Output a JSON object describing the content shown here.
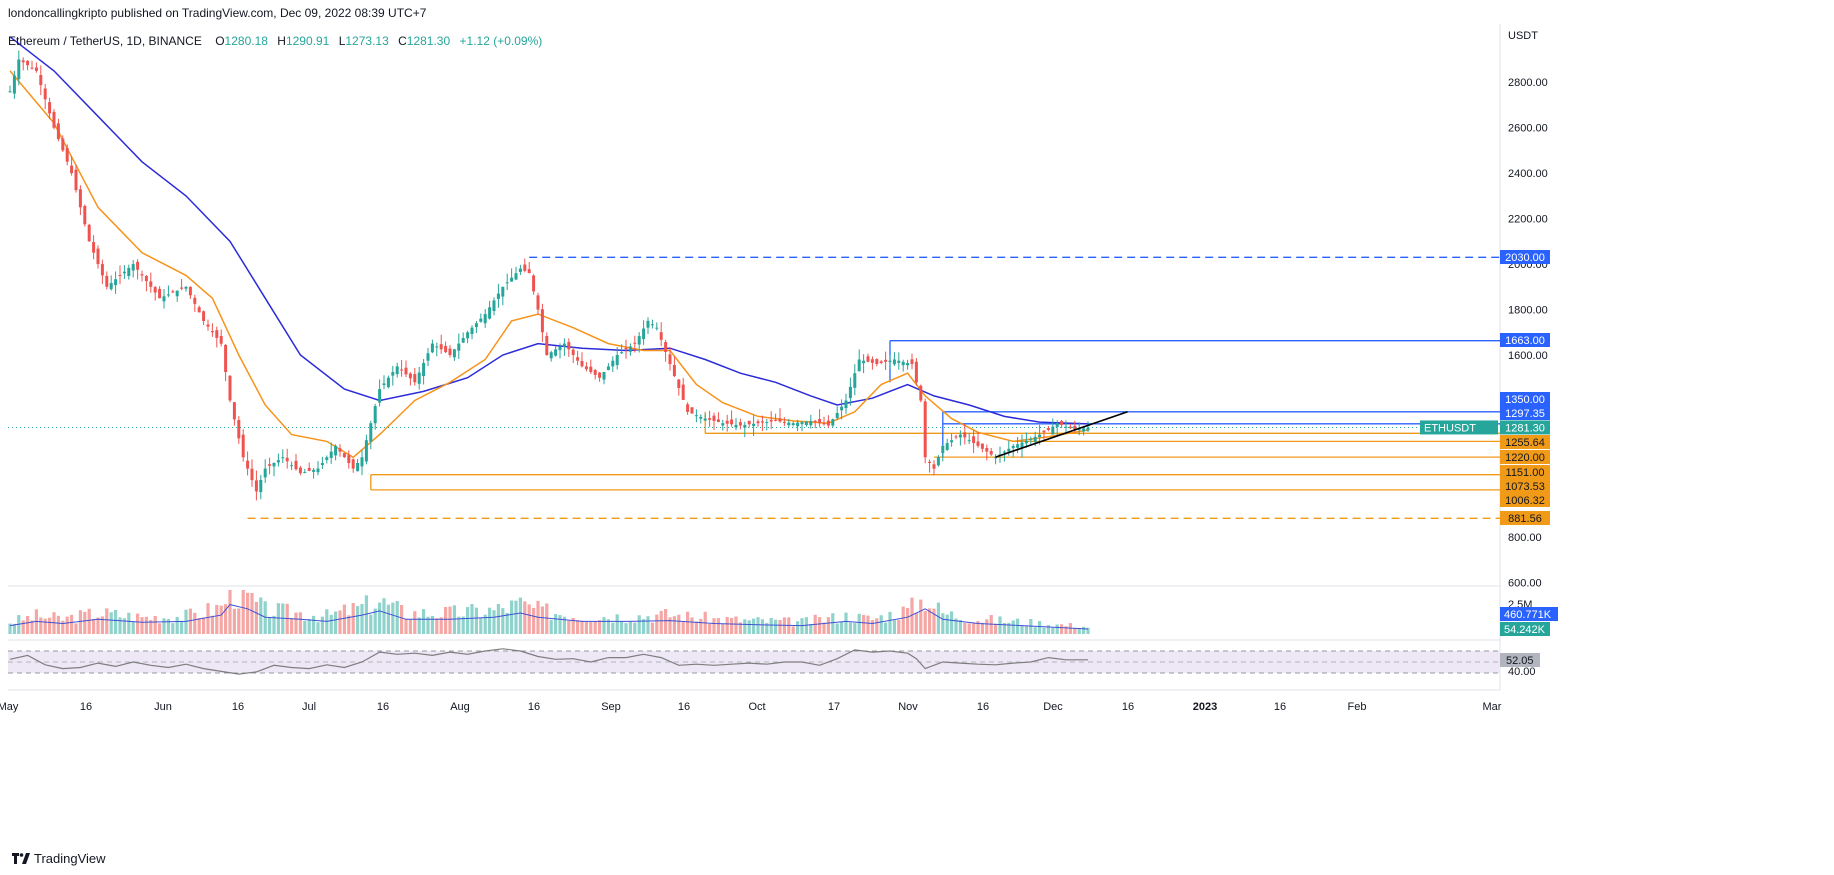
{
  "header": {
    "published": "londoncallingkripto published on TradingView.com, Dec 09, 2022 08:39 UTC+7"
  },
  "legend": {
    "symbol": "Ethereum / TetherUS, 1D, BINANCE",
    "o_label": "O",
    "o": "1280.18",
    "h_label": "H",
    "h": "1290.91",
    "l_label": "L",
    "l": "1273.13",
    "c_label": "C",
    "c": "1281.30",
    "change": "+1.12 (+0.09%)"
  },
  "footer": {
    "brand": "TradingView"
  },
  "colors": {
    "up": "#26a69a",
    "down": "#ef5350",
    "ema_fast": "#f7931a",
    "ema_slow": "#2b2bd9",
    "level_blue": "#2962ff",
    "level_orange": "#f09a18",
    "trend": "#000000",
    "rsi": "#7e7e7e",
    "rsi_band": "#ede7f6"
  },
  "chart_data": {
    "type": "candlestick",
    "unit": "USDT",
    "symbol": "ETHUSDT",
    "last_price": "1281.30",
    "yticks": [
      "2800.00",
      "2600.00",
      "2400.00",
      "2200.00",
      "2000.00",
      "1800.00",
      "1600.00",
      "800.00",
      "600.00"
    ],
    "xticks": [
      "May",
      "16",
      "Jun",
      "16",
      "Jul",
      "16",
      "Aug",
      "16",
      "Sep",
      "16",
      "Oct",
      "17",
      "Nov",
      "16",
      "Dec",
      "16",
      "2023",
      "16",
      "Feb",
      "Mar"
    ],
    "price_path": [
      [
        0,
        2760
      ],
      [
        2,
        2900
      ],
      [
        6,
        2850
      ],
      [
        10,
        2600
      ],
      [
        14,
        2400
      ],
      [
        18,
        2100
      ],
      [
        22,
        1900
      ],
      [
        28,
        2000
      ],
      [
        34,
        1850
      ],
      [
        40,
        1900
      ],
      [
        44,
        1750
      ],
      [
        48,
        1650
      ],
      [
        50,
        1400
      ],
      [
        53,
        1150
      ],
      [
        56,
        1000
      ],
      [
        58,
        1100
      ],
      [
        62,
        1150
      ],
      [
        66,
        1080
      ],
      [
        70,
        1100
      ],
      [
        74,
        1200
      ],
      [
        78,
        1100
      ],
      [
        80,
        1150
      ],
      [
        84,
        1450
      ],
      [
        88,
        1550
      ],
      [
        92,
        1480
      ],
      [
        96,
        1650
      ],
      [
        100,
        1600
      ],
      [
        104,
        1700
      ],
      [
        108,
        1780
      ],
      [
        112,
        1900
      ],
      [
        116,
        1980
      ],
      [
        118,
        1960
      ],
      [
        120,
        1800
      ],
      [
        122,
        1600
      ],
      [
        126,
        1650
      ],
      [
        130,
        1550
      ],
      [
        134,
        1500
      ],
      [
        138,
        1600
      ],
      [
        142,
        1650
      ],
      [
        145,
        1750
      ],
      [
        147,
        1720
      ],
      [
        150,
        1560
      ],
      [
        154,
        1350
      ],
      [
        158,
        1320
      ],
      [
        162,
        1300
      ],
      [
        166,
        1290
      ],
      [
        170,
        1300
      ],
      [
        174,
        1310
      ],
      [
        178,
        1300
      ],
      [
        182,
        1310
      ],
      [
        186,
        1290
      ],
      [
        190,
        1400
      ],
      [
        193,
        1580
      ],
      [
        197,
        1560
      ],
      [
        201,
        1580
      ],
      [
        205,
        1560
      ],
      [
        207,
        1400
      ],
      [
        208,
        1150
      ],
      [
        210,
        1100
      ],
      [
        212,
        1200
      ],
      [
        216,
        1250
      ],
      [
        220,
        1200
      ],
      [
        224,
        1150
      ],
      [
        228,
        1200
      ],
      [
        232,
        1230
      ],
      [
        236,
        1270
      ],
      [
        238,
        1300
      ],
      [
        242,
        1270
      ],
      [
        245,
        1281
      ]
    ],
    "x_start": "2022-05-01",
    "x_day_step": 1,
    "ema_fast_path": [
      [
        0,
        2850
      ],
      [
        10,
        2620
      ],
      [
        20,
        2250
      ],
      [
        30,
        2050
      ],
      [
        40,
        1950
      ],
      [
        46,
        1850
      ],
      [
        52,
        1600
      ],
      [
        58,
        1380
      ],
      [
        64,
        1250
      ],
      [
        72,
        1220
      ],
      [
        78,
        1150
      ],
      [
        84,
        1250
      ],
      [
        92,
        1400
      ],
      [
        100,
        1480
      ],
      [
        108,
        1580
      ],
      [
        114,
        1750
      ],
      [
        120,
        1780
      ],
      [
        128,
        1720
      ],
      [
        136,
        1650
      ],
      [
        144,
        1620
      ],
      [
        150,
        1620
      ],
      [
        156,
        1470
      ],
      [
        162,
        1390
      ],
      [
        170,
        1330
      ],
      [
        178,
        1310
      ],
      [
        186,
        1300
      ],
      [
        192,
        1350
      ],
      [
        198,
        1470
      ],
      [
        204,
        1520
      ],
      [
        208,
        1420
      ],
      [
        214,
        1320
      ],
      [
        220,
        1260
      ],
      [
        228,
        1220
      ],
      [
        236,
        1240
      ],
      [
        245,
        1270
      ]
    ],
    "ema_slow_path": [
      [
        0,
        3000
      ],
      [
        10,
        2850
      ],
      [
        20,
        2650
      ],
      [
        30,
        2450
      ],
      [
        40,
        2300
      ],
      [
        50,
        2100
      ],
      [
        58,
        1850
      ],
      [
        66,
        1600
      ],
      [
        76,
        1450
      ],
      [
        84,
        1400
      ],
      [
        94,
        1440
      ],
      [
        104,
        1500
      ],
      [
        112,
        1600
      ],
      [
        120,
        1650
      ],
      [
        130,
        1630
      ],
      [
        140,
        1620
      ],
      [
        150,
        1630
      ],
      [
        158,
        1580
      ],
      [
        166,
        1520
      ],
      [
        174,
        1480
      ],
      [
        182,
        1420
      ],
      [
        188,
        1380
      ],
      [
        196,
        1410
      ],
      [
        204,
        1470
      ],
      [
        210,
        1420
      ],
      [
        218,
        1380
      ],
      [
        226,
        1330
      ],
      [
        234,
        1305
      ],
      [
        245,
        1297
      ]
    ],
    "levels": [
      {
        "label": "2030.00",
        "value": 2030,
        "from_day": 118,
        "color": "blue",
        "style": "dashed"
      },
      {
        "label": "1663.00",
        "value": 1663,
        "from_day": 200,
        "color": "blue",
        "style": "solid"
      },
      {
        "label": "1350.00",
        "value": 1350,
        "from_day": 212,
        "color": "blue",
        "style": "solid"
      },
      {
        "label": "1297.35",
        "value": 1297.35,
        "from_day": 212,
        "color": "blue",
        "style": "solid"
      },
      {
        "label": "1255.64",
        "value": 1255.64,
        "from_day": 158,
        "color": "orange",
        "style": "solid"
      },
      {
        "label": "1220.00",
        "value": 1220,
        "from_day": 228,
        "color": "orange",
        "style": "solid"
      },
      {
        "label": "1151.00",
        "value": 1151,
        "from_day": 210,
        "color": "orange",
        "style": "solid"
      },
      {
        "label": "1073.53",
        "value": 1073.53,
        "from_day": 82,
        "color": "orange",
        "style": "solid"
      },
      {
        "label": "1006.32",
        "value": 1006.32,
        "from_day": 82,
        "color": "orange",
        "style": "solid"
      },
      {
        "label": "881.56",
        "value": 881.56,
        "from_day": 54,
        "color": "orange",
        "style": "dashed"
      }
    ],
    "trendline": {
      "from": [
        224,
        1151
      ],
      "to": [
        254,
        1350
      ]
    },
    "volume": {
      "labels": [
        "2.5M",
        "460.771K",
        "54.242K"
      ],
      "path": [
        [
          0,
          20
        ],
        [
          6,
          30
        ],
        [
          12,
          25
        ],
        [
          20,
          35
        ],
        [
          30,
          28
        ],
        [
          40,
          30
        ],
        [
          48,
          45
        ],
        [
          50,
          70
        ],
        [
          54,
          60
        ],
        [
          58,
          40
        ],
        [
          66,
          35
        ],
        [
          72,
          30
        ],
        [
          80,
          45
        ],
        [
          84,
          55
        ],
        [
          90,
          35
        ],
        [
          100,
          35
        ],
        [
          110,
          40
        ],
        [
          116,
          50
        ],
        [
          120,
          40
        ],
        [
          130,
          30
        ],
        [
          140,
          30
        ],
        [
          150,
          32
        ],
        [
          160,
          25
        ],
        [
          170,
          22
        ],
        [
          180,
          20
        ],
        [
          190,
          30
        ],
        [
          196,
          25
        ],
        [
          204,
          40
        ],
        [
          208,
          60
        ],
        [
          212,
          35
        ],
        [
          220,
          25
        ],
        [
          230,
          20
        ],
        [
          245,
          12
        ]
      ]
    },
    "rsi": {
      "labels": [
        "52.05",
        "40.00"
      ],
      "path": [
        [
          0,
          55
        ],
        [
          4,
          62
        ],
        [
          8,
          45
        ],
        [
          12,
          38
        ],
        [
          16,
          40
        ],
        [
          20,
          48
        ],
        [
          24,
          42
        ],
        [
          28,
          50
        ],
        [
          32,
          44
        ],
        [
          36,
          40
        ],
        [
          40,
          46
        ],
        [
          44,
          38
        ],
        [
          48,
          33
        ],
        [
          52,
          28
        ],
        [
          56,
          32
        ],
        [
          60,
          44
        ],
        [
          64,
          40
        ],
        [
          68,
          38
        ],
        [
          72,
          45
        ],
        [
          76,
          40
        ],
        [
          80,
          50
        ],
        [
          84,
          68
        ],
        [
          88,
          64
        ],
        [
          92,
          66
        ],
        [
          96,
          62
        ],
        [
          100,
          68
        ],
        [
          104,
          64
        ],
        [
          108,
          70
        ],
        [
          112,
          74
        ],
        [
          116,
          70
        ],
        [
          120,
          60
        ],
        [
          124,
          55
        ],
        [
          128,
          56
        ],
        [
          132,
          50
        ],
        [
          136,
          58
        ],
        [
          140,
          58
        ],
        [
          144,
          64
        ],
        [
          148,
          58
        ],
        [
          152,
          44
        ],
        [
          156,
          46
        ],
        [
          160,
          44
        ],
        [
          164,
          46
        ],
        [
          168,
          48
        ],
        [
          172,
          46
        ],
        [
          176,
          50
        ],
        [
          180,
          50
        ],
        [
          184,
          44
        ],
        [
          188,
          56
        ],
        [
          192,
          72
        ],
        [
          196,
          68
        ],
        [
          200,
          70
        ],
        [
          204,
          66
        ],
        [
          206,
          56
        ],
        [
          208,
          38
        ],
        [
          212,
          50
        ],
        [
          216,
          48
        ],
        [
          220,
          46
        ],
        [
          224,
          45
        ],
        [
          228,
          48
        ],
        [
          232,
          50
        ],
        [
          236,
          58
        ],
        [
          240,
          54
        ],
        [
          245,
          54
        ]
      ]
    }
  }
}
